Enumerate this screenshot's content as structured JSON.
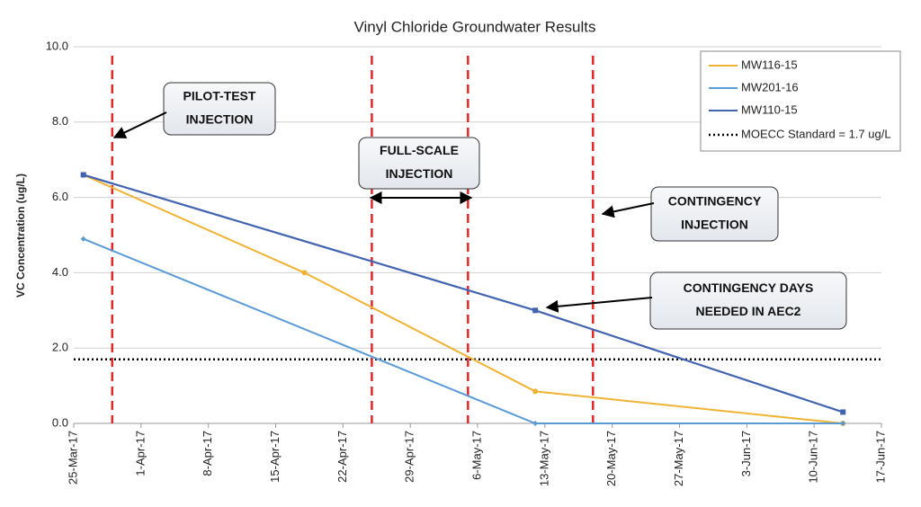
{
  "chart_data": {
    "type": "line",
    "title": "Vinyl Chloride Groundwater Results",
    "y_label": "VC Concentration (ug/L)",
    "xlim": [
      "2017-03-25",
      "2017-06-17"
    ],
    "xticks": [
      {
        "value": "2017-03-25",
        "label": "25-Mar-17"
      },
      {
        "value": "2017-04-01",
        "label": "1-Apr-17"
      },
      {
        "value": "2017-04-08",
        "label": "8-Apr-17"
      },
      {
        "value": "2017-04-15",
        "label": "15-Apr-17"
      },
      {
        "value": "2017-04-22",
        "label": "22-Apr-17"
      },
      {
        "value": "2017-04-29",
        "label": "29-Apr-17"
      },
      {
        "value": "2017-05-06",
        "label": "6-May-17"
      },
      {
        "value": "2017-05-13",
        "label": "13-May-17"
      },
      {
        "value": "2017-05-20",
        "label": "20-May-17"
      },
      {
        "value": "2017-05-27",
        "label": "27-May-17"
      },
      {
        "value": "2017-06-03",
        "label": "3-Jun-17"
      },
      {
        "value": "2017-06-10",
        "label": "10-Jun-17"
      },
      {
        "value": "2017-06-17",
        "label": "17-Jun-17"
      }
    ],
    "ylim": [
      0,
      10
    ],
    "yticks": [
      {
        "value": 0,
        "label": "0.0"
      },
      {
        "value": 2,
        "label": "2.0"
      },
      {
        "value": 4,
        "label": "4.0"
      },
      {
        "value": 6,
        "label": "6.0"
      },
      {
        "value": 8,
        "label": "8.0"
      },
      {
        "value": 10,
        "label": "10.0"
      }
    ],
    "grid": true,
    "legend": "upper right",
    "series": [
      {
        "name": "MW116-15",
        "color": "#f0b232",
        "marker": "circle",
        "x": [
          "2017-03-26",
          "2017-04-18",
          "2017-05-12",
          "2017-06-13"
        ],
        "values": [
          6.6,
          4.0,
          0.85,
          0.0
        ]
      },
      {
        "name": "MW201-16",
        "color": "#5b9bd5",
        "marker": "diamond",
        "x": [
          "2017-03-26",
          "2017-05-12",
          "2017-06-13"
        ],
        "values": [
          4.9,
          0.0,
          0.0
        ]
      },
      {
        "name": "MW110-15",
        "color": "#4263b0",
        "marker": "square",
        "x": [
          "2017-03-26",
          "2017-05-12",
          "2017-06-13"
        ],
        "values": [
          6.6,
          3.0,
          0.3
        ]
      }
    ],
    "reference": {
      "name": "MOECC Standard = 1.7 ug/L",
      "value": 1.7,
      "color": "#000000"
    },
    "event_lines": {
      "color": "#e0282a",
      "x": [
        "2017-03-29",
        "2017-04-25",
        "2017-05-05",
        "2017-05-18"
      ]
    },
    "annotations": [
      {
        "lines": [
          "PILOT-TEST",
          "INJECTION"
        ]
      },
      {
        "lines": [
          "FULL-SCALE",
          "INJECTION"
        ]
      },
      {
        "lines": [
          "CONTINGENCY",
          "INJECTION"
        ]
      },
      {
        "lines": [
          "CONTINGENCY DAYS",
          "NEEDED IN AEC2"
        ]
      }
    ]
  }
}
